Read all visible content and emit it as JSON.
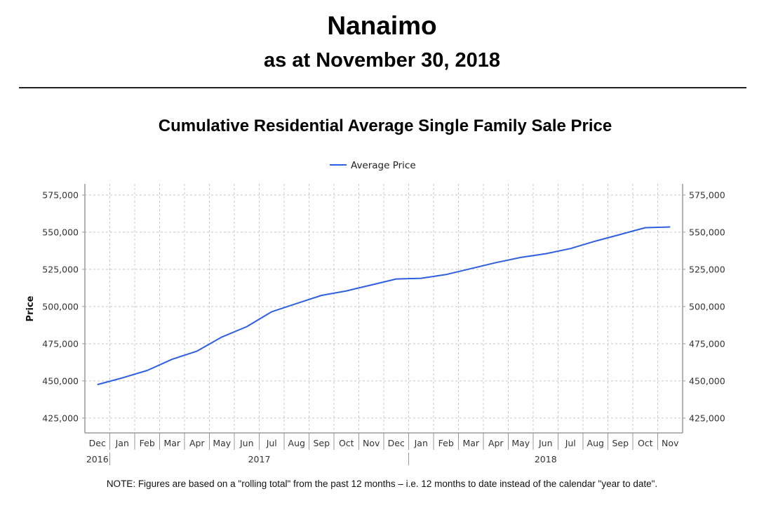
{
  "header": {
    "title": "Nanaimo",
    "subtitle": "as at November 30, 2018"
  },
  "note": "NOTE:  Figures are based on a \"rolling total\" from the past 12 months – i.e. 12 months to date instead of the calendar \"year to date\".",
  "colors": {
    "series": "#2f5fe0",
    "grid": "#c8c8c8",
    "axis": "#9a9a9a"
  },
  "chart_data": {
    "type": "line",
    "title": "Cumulative Residential Average Single Family Sale Price",
    "xlabel": "",
    "ylabel": "Price",
    "ylim": [
      415000,
      582500
    ],
    "yticks": [
      425000,
      450000,
      475000,
      500000,
      525000,
      550000,
      575000
    ],
    "ytick_labels": [
      "425,000",
      "450,000",
      "475,000",
      "500,000",
      "525,000",
      "550,000",
      "575,000"
    ],
    "secondary_y_axis": true,
    "grid": true,
    "legend": {
      "position": "top-center",
      "entries": [
        "Average Price"
      ]
    },
    "categories": [
      "Dec",
      "Jan",
      "Feb",
      "Mar",
      "Apr",
      "May",
      "Jun",
      "Jul",
      "Aug",
      "Sep",
      "Oct",
      "Nov",
      "Dec",
      "Jan",
      "Feb",
      "Mar",
      "Apr",
      "May",
      "Jun",
      "Jul",
      "Aug",
      "Sep",
      "Oct",
      "Nov"
    ],
    "year_groups": [
      {
        "label": "2016",
        "start": 0,
        "end": 0
      },
      {
        "label": "2017",
        "start": 1,
        "end": 12
      },
      {
        "label": "2018",
        "start": 13,
        "end": 23
      }
    ],
    "series": [
      {
        "name": "Average Price",
        "values": [
          447500,
          452000,
          457000,
          464500,
          470000,
          479500,
          486500,
          496500,
          502000,
          507500,
          510500,
          514500,
          518500,
          519000,
          521500,
          525500,
          529500,
          533000,
          535500,
          539000,
          544000,
          548500,
          553000,
          553500
        ]
      }
    ]
  }
}
